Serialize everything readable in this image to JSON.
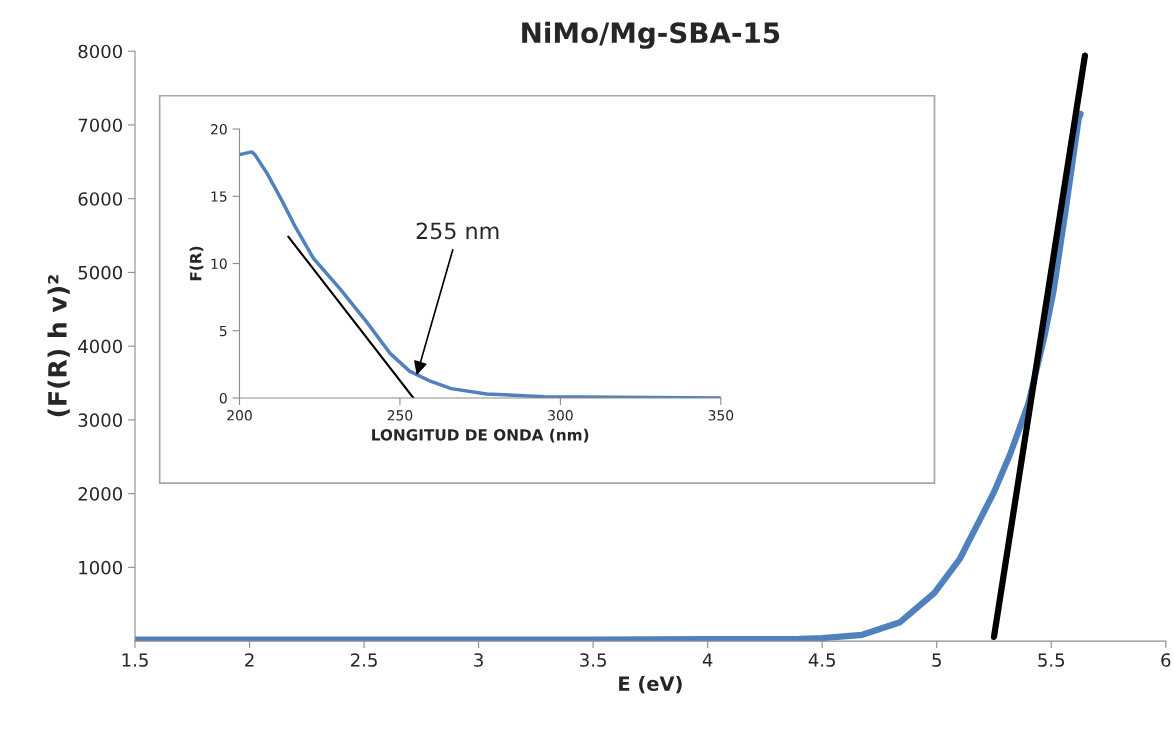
{
  "chart_data": [
    {
      "type": "line",
      "title": "NiMo/Mg-SBA-15",
      "xlabel": "E (eV)",
      "ylabel": "(F(R) h v)²",
      "xlim": [
        1.5,
        6
      ],
      "ylim": [
        0,
        8000
      ],
      "xticks": [
        1.5,
        2,
        2.5,
        3,
        3.5,
        4,
        4.5,
        5,
        5.5,
        6
      ],
      "yticks": [
        1000,
        2000,
        3000,
        4000,
        5000,
        6000,
        7000,
        8000
      ],
      "grid": false,
      "legend": false,
      "series": [
        {
          "color": "#4f81bd",
          "x": [
            1.5,
            2.5,
            3.5,
            4.0,
            4.4,
            4.5,
            4.675,
            4.84,
            4.99,
            5.1,
            5.25,
            5.32,
            5.4,
            5.47,
            5.51,
            5.565,
            5.62,
            5.628
          ],
          "values": [
            20,
            20,
            20,
            25,
            30,
            40,
            85,
            256,
            655,
            1110,
            2020,
            2530,
            3220,
            4130,
            4750,
            5890,
            7090,
            7150
          ]
        },
        {
          "color": "#000000",
          "x": [
            5.25,
            5.647
          ],
          "values": [
            57,
            7940
          ]
        }
      ]
    },
    {
      "type": "line",
      "xlabel": "LONGITUD DE ONDA (nm)",
      "ylabel": "F(R)",
      "xlim": [
        200,
        350
      ],
      "ylim": [
        0,
        20
      ],
      "xticks": [
        200,
        250,
        300,
        350
      ],
      "yticks": [
        0,
        5,
        10,
        15,
        20
      ],
      "grid": false,
      "legend": false,
      "annotations": [
        {
          "text": "255 nm",
          "x": 255,
          "y": 1.5
        }
      ],
      "series": [
        {
          "color": "#4f81bd",
          "x": [
            200,
            203.8,
            204.8,
            208.6,
            213.4,
            217,
            223,
            231.4,
            239.8,
            247,
            253,
            259,
            266,
            277,
            295,
            350
          ],
          "values": [
            18.1,
            18.3,
            18.1,
            16.7,
            14.6,
            12.9,
            10.4,
            8.1,
            5.6,
            3.3,
            2.0,
            1.3,
            0.7,
            0.3,
            0.1,
            0.0
          ]
        },
        {
          "color": "#000000",
          "x": [
            215.2,
            254.2
          ],
          "values": [
            12.0,
            0
          ]
        }
      ]
    }
  ]
}
